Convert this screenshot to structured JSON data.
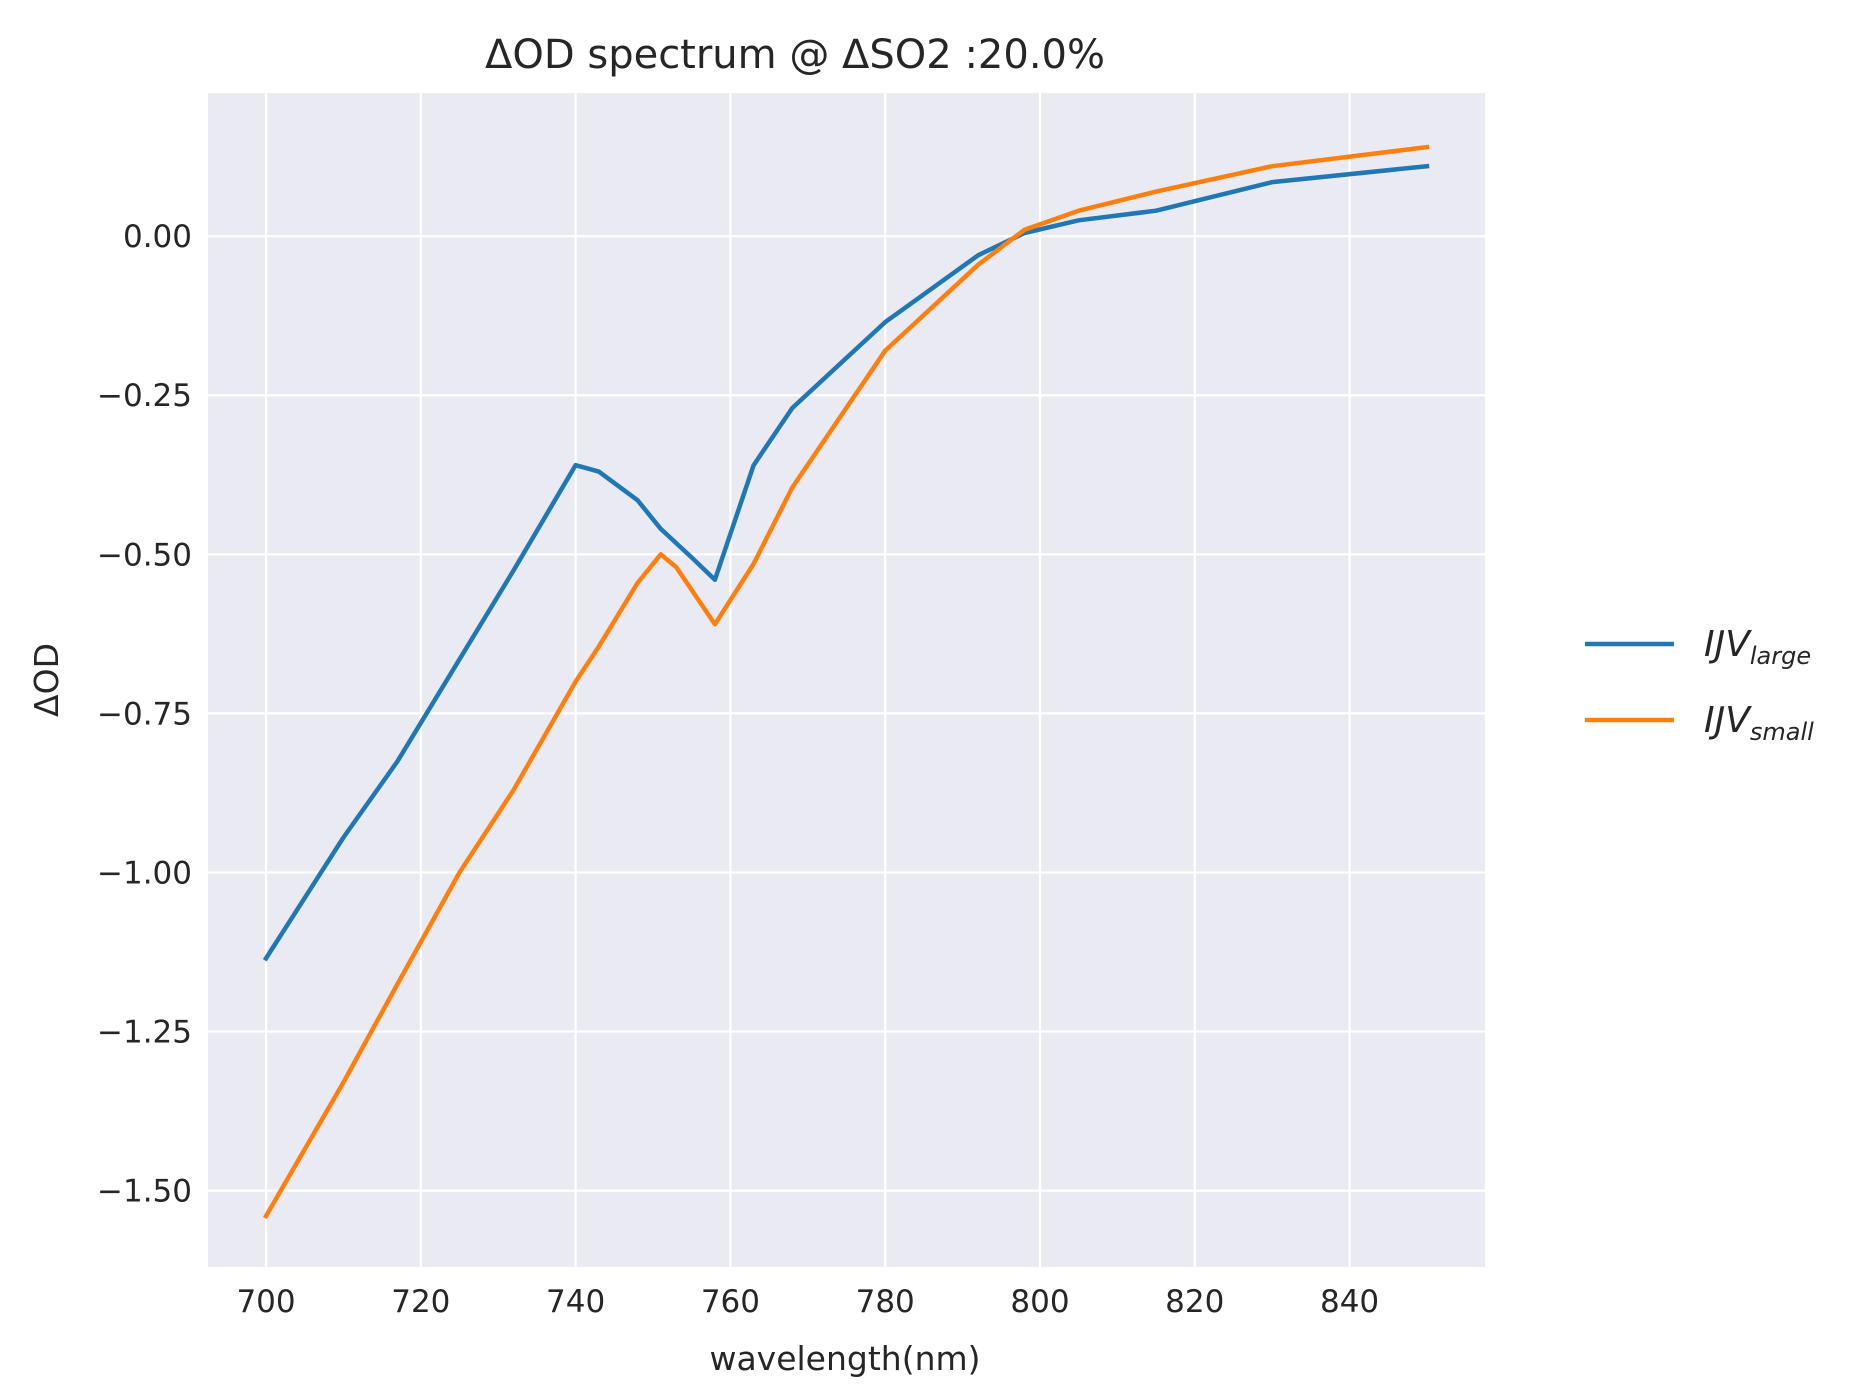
{
  "chart_data": {
    "type": "line",
    "title": "ΔOD spectrum @ ΔSO2 :20.0%",
    "xlabel": "wavelength(nm)",
    "ylabel": "ΔOD",
    "xlim": [
      692.5,
      857.5
    ],
    "ylim": [
      -1.62,
      0.225
    ],
    "xticks": [
      700,
      720,
      740,
      760,
      780,
      800,
      820,
      840
    ],
    "xtick_labels": [
      "700",
      "720",
      "740",
      "760",
      "780",
      "800",
      "820",
      "840"
    ],
    "yticks": [
      0.0,
      -0.25,
      -0.5,
      -0.75,
      -1.0,
      -1.25,
      -1.5
    ],
    "ytick_labels": [
      "0.00",
      "−0.25",
      "−0.50",
      "−0.75",
      "−1.00",
      "−1.25",
      "−1.50"
    ],
    "grid": true,
    "legend_position": "outside-right",
    "style": {
      "background": "#EAEAF2",
      "grid_color": "#FFFFFF"
    },
    "series": [
      {
        "name": "IJV_large",
        "legend_main": "IJV",
        "legend_sub": "large",
        "color": "#1F77B4",
        "x": [
          700,
          710,
          717,
          725,
          732,
          740,
          743,
          748,
          751,
          755,
          758,
          763,
          768,
          780,
          792,
          798,
          805,
          815,
          830,
          850
        ],
        "y": [
          -1.135,
          -0.945,
          -0.825,
          -0.665,
          -0.525,
          -0.36,
          -0.37,
          -0.415,
          -0.46,
          -0.505,
          -0.54,
          -0.36,
          -0.27,
          -0.135,
          -0.03,
          0.005,
          0.025,
          0.04,
          0.085,
          0.11
        ]
      },
      {
        "name": "IJV_small",
        "legend_main": "IJV",
        "legend_sub": "small",
        "color": "#FF7F0E",
        "x": [
          700,
          710,
          717,
          725,
          732,
          740,
          743,
          748,
          751,
          753,
          758,
          763,
          768,
          780,
          792,
          798,
          805,
          815,
          830,
          850
        ],
        "y": [
          -1.54,
          -1.33,
          -1.175,
          -1.0,
          -0.87,
          -0.7,
          -0.645,
          -0.545,
          -0.5,
          -0.52,
          -0.61,
          -0.515,
          -0.395,
          -0.18,
          -0.045,
          0.01,
          0.04,
          0.07,
          0.11,
          0.14
        ]
      }
    ]
  }
}
